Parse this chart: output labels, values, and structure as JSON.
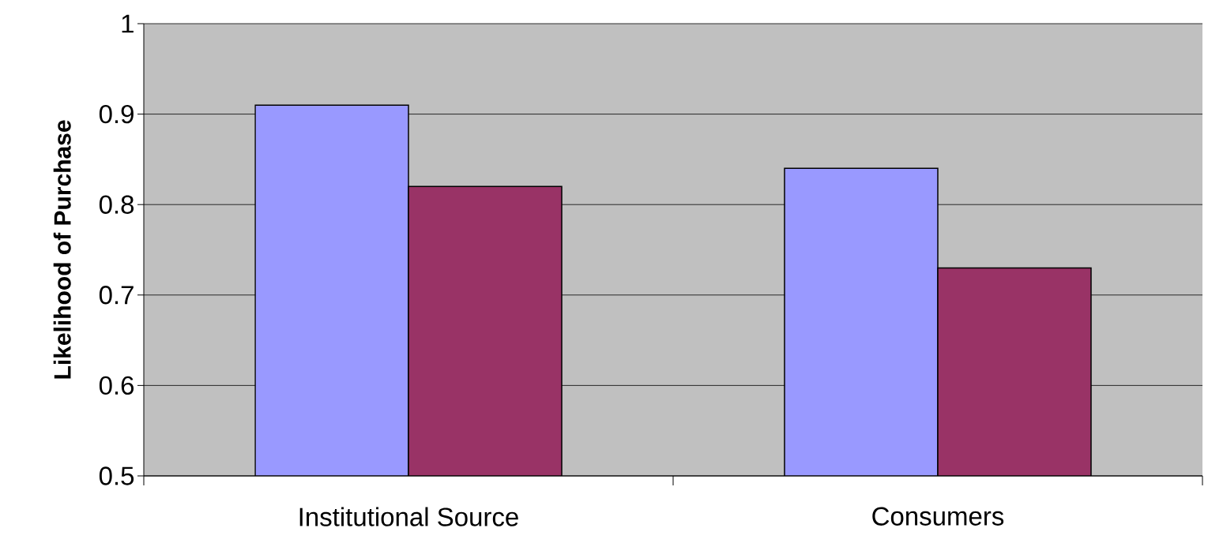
{
  "chart_data": {
    "type": "bar",
    "ylabel": "Likelihood of Purchase",
    "categories": [
      "Institutional Source",
      "Consumers"
    ],
    "series": [
      {
        "color": "#9999ff",
        "values": [
          0.91,
          0.84
        ]
      },
      {
        "color": "#993366",
        "values": [
          0.82,
          0.73
        ]
      }
    ],
    "ylim": [
      0.5,
      1
    ],
    "yticks": [
      0.5,
      0.6,
      0.7,
      0.8,
      0.9,
      1
    ],
    "grid": "y"
  }
}
